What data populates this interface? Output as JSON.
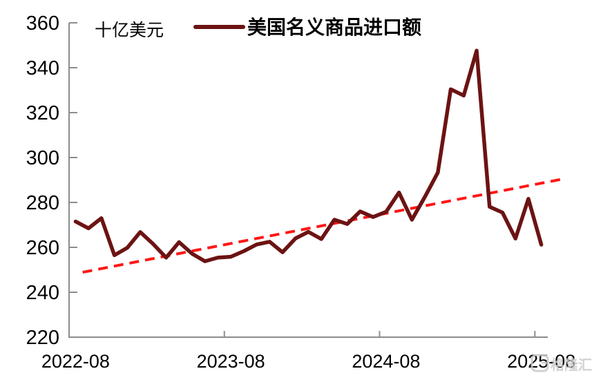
{
  "watermark": {
    "brand": "格隆汇"
  },
  "chart_data": {
    "type": "line",
    "title": "",
    "unit_label": "十亿美元",
    "xlabel": "",
    "ylabel": "十亿美元",
    "grid": false,
    "legend": {
      "position": "top",
      "entries": [
        "美国名义商品进口额"
      ]
    },
    "x": [
      "2022-08",
      "2022-09",
      "2022-10",
      "2022-11",
      "2022-12",
      "2023-01",
      "2023-02",
      "2023-03",
      "2023-04",
      "2023-05",
      "2023-06",
      "2023-07",
      "2023-08",
      "2023-09",
      "2023-10",
      "2023-11",
      "2023-12",
      "2024-01",
      "2024-02",
      "2024-03",
      "2024-04",
      "2024-05",
      "2024-06",
      "2024-07",
      "2024-08",
      "2024-09",
      "2024-10",
      "2024-11",
      "2024-12",
      "2025-01",
      "2025-02",
      "2025-03",
      "2025-04",
      "2025-05",
      "2025-06",
      "2025-07",
      "2025-08"
    ],
    "x_tick_labels": [
      "2022-08",
      "2023-08",
      "2024-08",
      "2025-08"
    ],
    "x_tick_indices": [
      0,
      12,
      24,
      36
    ],
    "y_axis": {
      "min": 220,
      "max": 360,
      "step": 20,
      "tick_labels": [
        "360",
        "340",
        "320",
        "300",
        "280",
        "260",
        "240",
        "220"
      ]
    },
    "series": [
      {
        "name": "美国名义商品进口额",
        "color": "#6C1313",
        "style": "solid",
        "values": [
          271.5,
          268.5,
          273.0,
          256.5,
          259.8,
          266.8,
          261.5,
          255.4,
          262.3,
          257.2,
          253.8,
          255.4,
          255.8,
          258.3,
          261.3,
          262.5,
          257.8,
          264.0,
          266.9,
          263.7,
          272.3,
          270.4,
          276.0,
          273.5,
          275.8,
          284.4,
          272.3,
          282.5,
          293.3,
          330.4,
          327.6,
          347.6,
          278.1,
          275.5,
          263.9,
          281.6,
          261.2
        ]
      }
    ],
    "trendline": {
      "name": "线性趋势线",
      "color": "#FF1616",
      "style": "dashed",
      "from": {
        "index": 0.55,
        "value": 248.9
      },
      "to": {
        "index": 37.9,
        "value": 290.7
      }
    },
    "axis_color": "#8C8C8C",
    "label_color": "#000000",
    "watermark_color": "#C9C9C9"
  }
}
